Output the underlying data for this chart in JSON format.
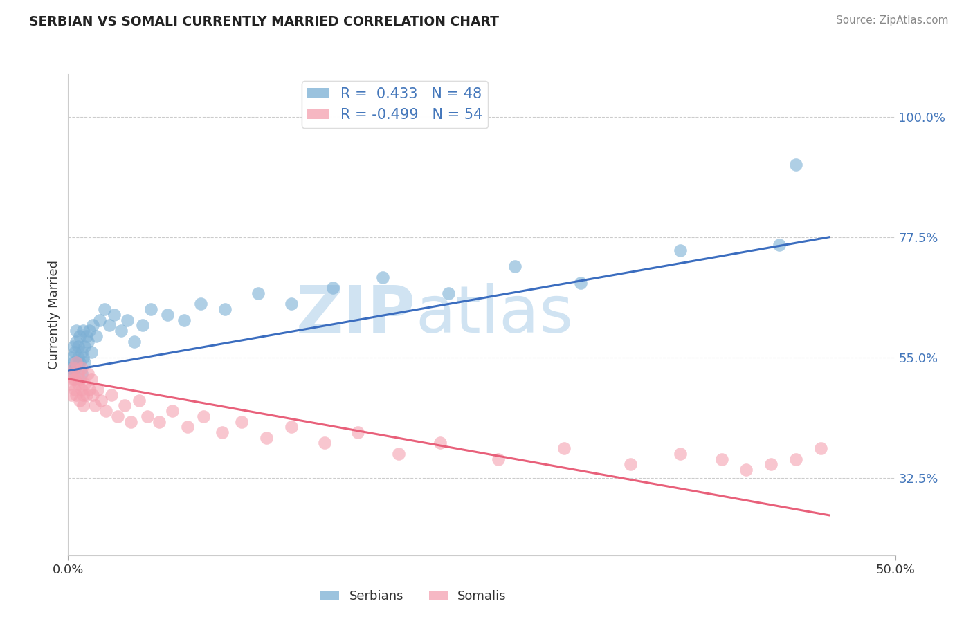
{
  "title": "SERBIAN VS SOMALI CURRENTLY MARRIED CORRELATION CHART",
  "source_text": "Source: ZipAtlas.com",
  "ylabel": "Currently Married",
  "ytick_labels": [
    "32.5%",
    "55.0%",
    "77.5%",
    "100.0%"
  ],
  "ytick_values": [
    0.325,
    0.55,
    0.775,
    1.0
  ],
  "xlim": [
    0.0,
    0.5
  ],
  "ylim": [
    0.18,
    1.08
  ],
  "legend_serbian": "R =  0.433   N = 48",
  "legend_somali": "R = -0.499   N = 54",
  "legend_label_serbian": "Serbians",
  "legend_label_somali": "Somalis",
  "blue_color": "#7BAFD4",
  "pink_color": "#F4A0B0",
  "blue_line_color": "#3B6DBF",
  "pink_line_color": "#E8607A",
  "title_color": "#222222",
  "axis_value_color": "#4477BB",
  "watermark_color": "#C8DFF0",
  "background_color": "#FFFFFF",
  "grid_color": "#CCCCCC",
  "serbian_x": [
    0.001,
    0.002,
    0.002,
    0.003,
    0.003,
    0.004,
    0.004,
    0.005,
    0.005,
    0.006,
    0.006,
    0.007,
    0.007,
    0.008,
    0.008,
    0.009,
    0.009,
    0.01,
    0.01,
    0.011,
    0.012,
    0.013,
    0.014,
    0.015,
    0.017,
    0.019,
    0.022,
    0.025,
    0.028,
    0.032,
    0.036,
    0.04,
    0.045,
    0.05,
    0.06,
    0.07,
    0.08,
    0.095,
    0.115,
    0.135,
    0.16,
    0.19,
    0.23,
    0.27,
    0.31,
    0.37,
    0.43,
    0.44
  ],
  "serbian_y": [
    0.53,
    0.55,
    0.52,
    0.57,
    0.54,
    0.56,
    0.53,
    0.58,
    0.6,
    0.55,
    0.57,
    0.54,
    0.59,
    0.56,
    0.52,
    0.6,
    0.55,
    0.57,
    0.54,
    0.59,
    0.58,
    0.6,
    0.56,
    0.61,
    0.59,
    0.62,
    0.64,
    0.61,
    0.63,
    0.6,
    0.62,
    0.58,
    0.61,
    0.64,
    0.63,
    0.62,
    0.65,
    0.64,
    0.67,
    0.65,
    0.68,
    0.7,
    0.67,
    0.72,
    0.69,
    0.75,
    0.76,
    0.91
  ],
  "somali_x": [
    0.001,
    0.002,
    0.002,
    0.003,
    0.003,
    0.004,
    0.004,
    0.005,
    0.005,
    0.006,
    0.006,
    0.007,
    0.007,
    0.008,
    0.008,
    0.009,
    0.009,
    0.01,
    0.011,
    0.012,
    0.013,
    0.014,
    0.015,
    0.016,
    0.018,
    0.02,
    0.023,
    0.026,
    0.03,
    0.034,
    0.038,
    0.043,
    0.048,
    0.055,
    0.063,
    0.072,
    0.082,
    0.093,
    0.105,
    0.12,
    0.135,
    0.155,
    0.175,
    0.2,
    0.225,
    0.26,
    0.3,
    0.34,
    0.37,
    0.395,
    0.41,
    0.425,
    0.44,
    0.455
  ],
  "somali_y": [
    0.5,
    0.48,
    0.52,
    0.51,
    0.53,
    0.49,
    0.51,
    0.54,
    0.48,
    0.5,
    0.52,
    0.47,
    0.51,
    0.53,
    0.49,
    0.48,
    0.46,
    0.5,
    0.48,
    0.52,
    0.49,
    0.51,
    0.48,
    0.46,
    0.49,
    0.47,
    0.45,
    0.48,
    0.44,
    0.46,
    0.43,
    0.47,
    0.44,
    0.43,
    0.45,
    0.42,
    0.44,
    0.41,
    0.43,
    0.4,
    0.42,
    0.39,
    0.41,
    0.37,
    0.39,
    0.36,
    0.38,
    0.35,
    0.37,
    0.36,
    0.34,
    0.35,
    0.36,
    0.38
  ]
}
